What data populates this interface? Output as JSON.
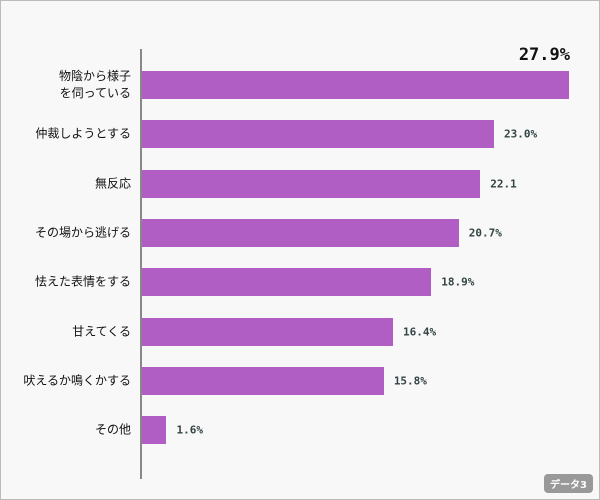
{
  "chart_data": {
    "type": "bar",
    "orientation": "horizontal",
    "categories": [
      "物陰から様子を伺っている",
      "仲裁しようとする",
      "無反応",
      "その場から逃げる",
      "怯えた表情をする",
      "甘えてくる",
      "吠えるか鳴くかする",
      "その他"
    ],
    "values": [
      27.9,
      23.0,
      22.1,
      20.7,
      18.9,
      16.4,
      15.8,
      1.6
    ],
    "value_labels": [
      "27.9%",
      "23.0%",
      "22.1",
      "20.7%",
      "18.9%",
      "16.4%",
      "15.8%",
      "1.6%"
    ],
    "color": "#b05ec4",
    "badge": "データ3"
  }
}
